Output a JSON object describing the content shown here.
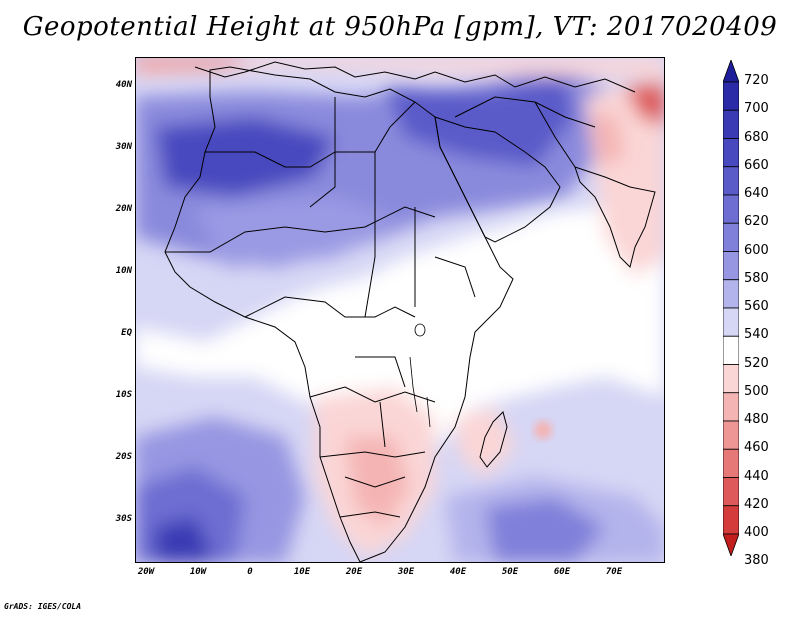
{
  "title": "Geopotential Height at 950hPa [gpm], VT: 2017020409",
  "credit": "GrADS: IGES/COLA",
  "map": {
    "y_ticks": [
      "40N",
      "30N",
      "20N",
      "10N",
      "EQ",
      "10S",
      "20S",
      "30S"
    ],
    "x_ticks": [
      "20W",
      "10W",
      "0",
      "10E",
      "20E",
      "30E",
      "40E",
      "50E",
      "60E",
      "70E"
    ]
  },
  "colorbar": {
    "labels": [
      "720",
      "700",
      "680",
      "660",
      "640",
      "620",
      "600",
      "580",
      "560",
      "540",
      "520",
      "500",
      "480",
      "460",
      "440",
      "420",
      "400",
      "380"
    ],
    "colors": [
      "#1e1e9a",
      "#2b2ba8",
      "#3a3ab4",
      "#4848bf",
      "#5a5ac9",
      "#6d6dd2",
      "#8080da",
      "#9696e2",
      "#b4b4ec",
      "#d6d6f5",
      "#ffffff",
      "#fbd6d6",
      "#f4b4b4",
      "#ee9696",
      "#e67878",
      "#de5a5a",
      "#d43c3c",
      "#c21e1e"
    ]
  }
}
